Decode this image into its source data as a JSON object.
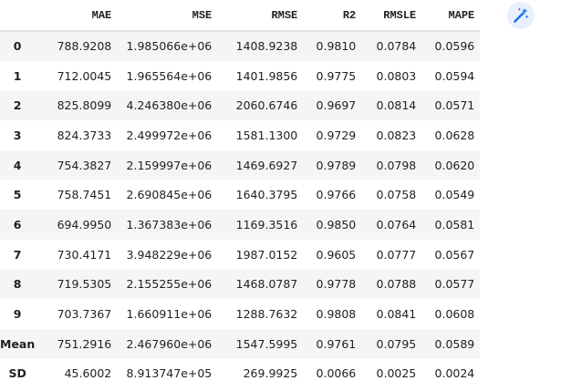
{
  "table": {
    "columns": [
      "MAE",
      "MSE",
      "RMSE",
      "R2",
      "RMSLE",
      "MAPE"
    ],
    "rows": [
      {
        "index": "0",
        "values": [
          "788.9208",
          "1.985066e+06",
          "1408.9238",
          "0.9810",
          "0.0784",
          "0.0596"
        ]
      },
      {
        "index": "1",
        "values": [
          "712.0045",
          "1.965564e+06",
          "1401.9856",
          "0.9775",
          "0.0803",
          "0.0594"
        ]
      },
      {
        "index": "2",
        "values": [
          "825.8099",
          "4.246380e+06",
          "2060.6746",
          "0.9697",
          "0.0814",
          "0.0571"
        ]
      },
      {
        "index": "3",
        "values": [
          "824.3733",
          "2.499972e+06",
          "1581.1300",
          "0.9729",
          "0.0823",
          "0.0628"
        ]
      },
      {
        "index": "4",
        "values": [
          "754.3827",
          "2.159997e+06",
          "1469.6927",
          "0.9789",
          "0.0798",
          "0.0620"
        ]
      },
      {
        "index": "5",
        "values": [
          "758.7451",
          "2.690845e+06",
          "1640.3795",
          "0.9766",
          "0.0758",
          "0.0549"
        ]
      },
      {
        "index": "6",
        "values": [
          "694.9950",
          "1.367383e+06",
          "1169.3516",
          "0.9850",
          "0.0764",
          "0.0581"
        ]
      },
      {
        "index": "7",
        "values": [
          "730.4171",
          "3.948229e+06",
          "1987.0152",
          "0.9605",
          "0.0777",
          "0.0567"
        ]
      },
      {
        "index": "8",
        "values": [
          "719.5305",
          "2.155255e+06",
          "1468.0787",
          "0.9778",
          "0.0788",
          "0.0577"
        ]
      },
      {
        "index": "9",
        "values": [
          "703.7367",
          "1.660911e+06",
          "1288.7632",
          "0.9808",
          "0.0841",
          "0.0608"
        ]
      },
      {
        "index": "Mean",
        "values": [
          "751.2916",
          "2.467960e+06",
          "1547.5995",
          "0.9761",
          "0.0795",
          "0.0589"
        ]
      },
      {
        "index": "SD",
        "values": [
          "45.6002",
          "8.913747e+05",
          "269.9925",
          "0.0066",
          "0.0025",
          "0.0024"
        ]
      }
    ]
  },
  "toolbar": {
    "magic_icon": "magic-wand-icon",
    "accent": "#1a73e8",
    "button_bg": "#e8f0fe"
  }
}
